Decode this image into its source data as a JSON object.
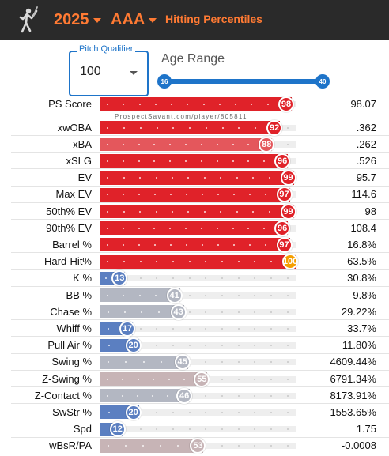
{
  "header": {
    "year": "2025",
    "level": "AAA",
    "title": "Hitting Percentiles",
    "accent_color": "#ff7a33",
    "background_color": "#2a2a2a"
  },
  "controls": {
    "pitch_qualifier": {
      "label": "Pitch Qualifier",
      "value": "100"
    },
    "age_range": {
      "label": "Age Range",
      "min": "16",
      "max": "40"
    }
  },
  "watermark": "ProspectSavant.com/player/805811",
  "colors": {
    "high": "#e02229",
    "high_light": "#e4575c",
    "low": "#5b7fc1",
    "neutral": "#b3b7c2",
    "neutral_warm": "#c7b4b6",
    "top": "#f59f00"
  },
  "rows": [
    {
      "label": "PS Score",
      "percentile": 98,
      "value": "98.07"
    },
    {
      "label": "xwOBA",
      "percentile": 92,
      "value": ".362"
    },
    {
      "label": "xBA",
      "percentile": 88,
      "value": ".262"
    },
    {
      "label": "xSLG",
      "percentile": 96,
      "value": ".526"
    },
    {
      "label": "EV",
      "percentile": 99,
      "value": "95.7"
    },
    {
      "label": "Max EV",
      "percentile": 97,
      "value": "114.6"
    },
    {
      "label": "50th% EV",
      "percentile": 99,
      "value": "98"
    },
    {
      "label": "90th% EV",
      "percentile": 96,
      "value": "108.4"
    },
    {
      "label": "Barrel %",
      "percentile": 97,
      "value": "16.8%"
    },
    {
      "label": "Hard-Hit%",
      "percentile": 100,
      "value": "63.5%"
    },
    {
      "label": "K %",
      "percentile": 13,
      "value": "30.8%"
    },
    {
      "label": "BB %",
      "percentile": 41,
      "value": "9.8%"
    },
    {
      "label": "Chase %",
      "percentile": 43,
      "value": "29.22%"
    },
    {
      "label": "Whiff %",
      "percentile": 17,
      "value": "33.7%"
    },
    {
      "label": "Pull Air %",
      "percentile": 20,
      "value": "11.80%"
    },
    {
      "label": "Swing %",
      "percentile": 45,
      "value": "4609.44%"
    },
    {
      "label": "Z-Swing %",
      "percentile": 55,
      "value": "6791.34%"
    },
    {
      "label": "Z-Contact %",
      "percentile": 46,
      "value": "8173.91%"
    },
    {
      "label": "SwStr %",
      "percentile": 20,
      "value": "1553.65%"
    },
    {
      "label": "Spd",
      "percentile": 12,
      "value": "1.75"
    },
    {
      "label": "wBsR/PA",
      "percentile": 53,
      "value": "-0.0008"
    }
  ]
}
